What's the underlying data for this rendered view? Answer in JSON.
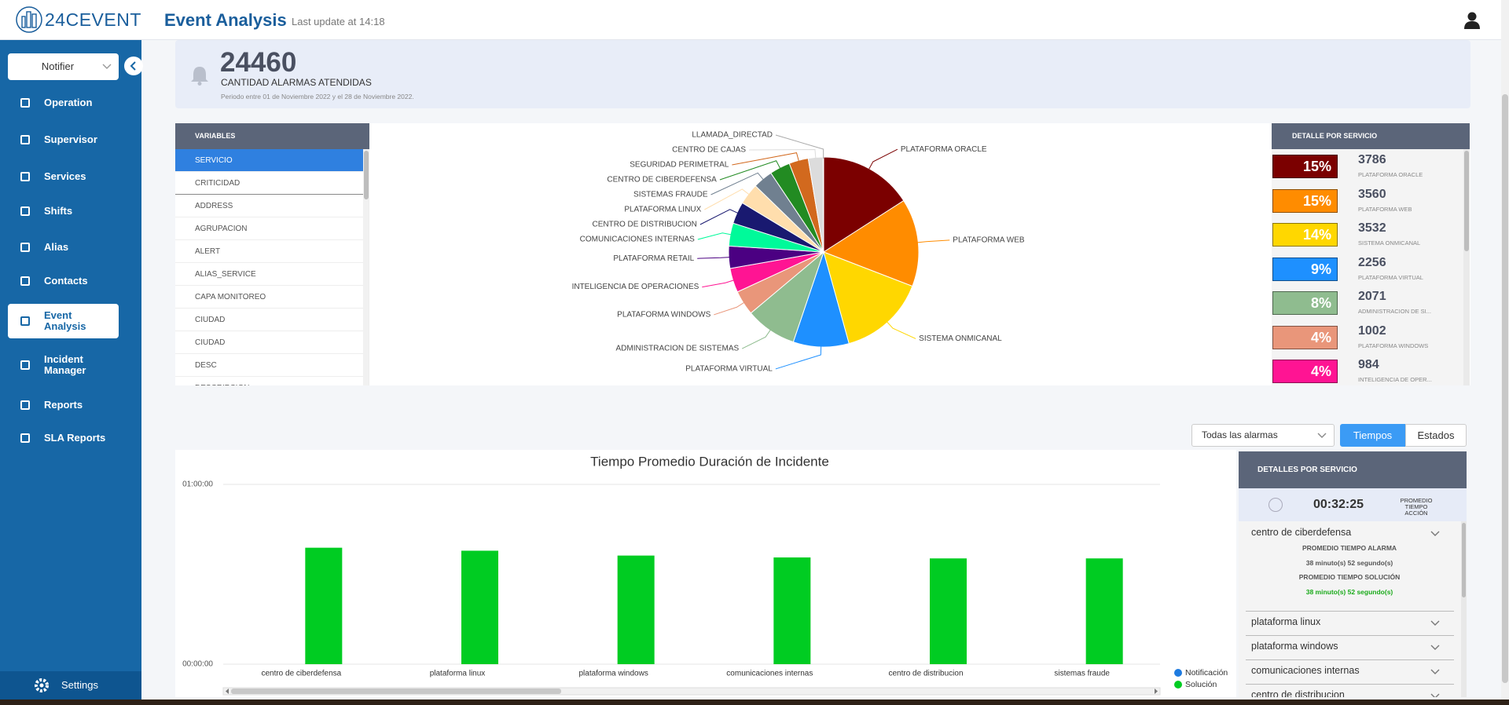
{
  "header": {
    "logo": "24CEVENT",
    "title": "Event Analysis",
    "last_update": "Last update at 14:18"
  },
  "sidebar": {
    "notifier": "Notifier",
    "items": [
      "Operation",
      "Supervisor",
      "Services",
      "Shifts",
      "Alias",
      "Contacts",
      "Event Analysis",
      "Incident Manager",
      "Reports",
      "SLA Reports"
    ],
    "active": 6,
    "settings": "Settings"
  },
  "summary": {
    "count": 24460,
    "label": "CANTIDAD ALARMAS ATENDIDAS",
    "period": "Periodo entre 01 de Noviembre 2022 y el 28 de Noviembre 2022."
  },
  "variables": {
    "title": "VARIABLES",
    "items": [
      "SERVICIO",
      "CRITICIDAD",
      "ADDRESS",
      "AGRUPACION",
      "ALERT",
      "ALIAS_SERVICE",
      "CAPA MONITOREO",
      "CIUDAD",
      "CIUDAD",
      "DESC",
      "DESCRIPCION"
    ],
    "selected": 0
  },
  "detail": {
    "title": "DETALLE POR SERVICIO",
    "items": [
      {
        "percent": "15%",
        "value": 3786,
        "name": "PLATAFORMA ORACLE",
        "color": "#7b0000"
      },
      {
        "percent": "15%",
        "value": 3560,
        "name": "PLATAFORMA WEB",
        "color": "#ff8c00"
      },
      {
        "percent": "14%",
        "value": 3532,
        "name": "SISTEMA ONMICANAL",
        "color": "#ffd700"
      },
      {
        "percent": "9%",
        "value": 2256,
        "name": "PLATAFORMA VIRTUAL",
        "color": "#1e90ff"
      },
      {
        "percent": "8%",
        "value": 2071,
        "name": "ADMINISTRACION DE SI...",
        "color": "#8fbc8f"
      },
      {
        "percent": "4%",
        "value": 1002,
        "name": "PLATAFORMA WINDOWS",
        "color": "#e9967a"
      },
      {
        "percent": "4%",
        "value": 984,
        "name": "INTELIGENCIA DE OPER...",
        "color": "#ff1493"
      }
    ]
  },
  "controls": {
    "filter": "Todas las alarmas",
    "tabs": [
      "Tiempos",
      "Estados"
    ],
    "active_tab": 0
  },
  "service_details": {
    "title": "DETALLES POR SERVICIO",
    "average": "00:32:25",
    "average_label": "PROMEDIO TIEMPO ACCIÓN",
    "items": [
      {
        "name": "centro de ciberdefensa",
        "fields": [
          "PROMEDIO TIEMPO ALARMA",
          "38 minuto(s) 52 segundo(s)",
          "PROMEDIO TIEMPO SOLUCIÓN",
          "38 minuto(s) 52 segundo(s)"
        ]
      },
      {
        "name": "plataforma linux"
      },
      {
        "name": "plataforma windows"
      },
      {
        "name": "comunicaciones internas"
      },
      {
        "name": "centro de distribucion"
      }
    ]
  },
  "chart_data": [
    {
      "type": "pie",
      "categories": [
        "PLATAFORMA ORACLE",
        "PLATAFORMA WEB",
        "SISTEMA ONMICANAL",
        "PLATAFORMA VIRTUAL",
        "ADMINISTRACION DE SISTEMAS",
        "PLATAFORMA WINDOWS",
        "INTELIGENCIA DE OPERACIONES",
        "PLATAFORMA RETAIL",
        "COMUNICACIONES INTERNAS",
        "CENTRO DE DISTRIBUCION",
        "PLATAFORMA LINUX",
        "SISTEMAS FRAUDE",
        "CENTRO DE CIBERDEFENSA",
        "SEGURIDAD PERIMETRAL",
        "CENTRO DE CAJAS",
        "LLAMADA_DIRECTAD"
      ],
      "values": [
        3786,
        3560,
        3532,
        2256,
        2071,
        1002,
        984,
        900,
        930,
        890,
        860,
        800,
        830,
        780,
        600,
        20
      ],
      "colors": [
        "#7b0000",
        "#ff8c00",
        "#ffd700",
        "#1e90ff",
        "#8fbc8f",
        "#e9967a",
        "#ff1493",
        "#4b0082",
        "#00fa9a",
        "#191970",
        "#ffdead",
        "#708090",
        "#228b22",
        "#d2691e",
        "#dcdcdc",
        "#a9a9a9"
      ]
    },
    {
      "type": "bar",
      "title": "Tiempo Promedio Duración de Incidente",
      "categories": [
        "centro de ciberdefensa",
        "plataforma linux",
        "plataforma windows",
        "comunicaciones internas",
        "centro de distribucion",
        "sistemas fraude"
      ],
      "series": [
        {
          "name": "Notificación",
          "color": "#1e7be0",
          "values": [
            0,
            0,
            0,
            0,
            0,
            0
          ]
        },
        {
          "name": "Solución",
          "color": "#00cc22",
          "values": [
            2332,
            2272,
            2175,
            2137,
            2118,
            2118
          ]
        }
      ],
      "ylim": [
        0,
        3600
      ],
      "yticks": [
        {
          "value": 0,
          "label": "00:00:00"
        },
        {
          "value": 3600,
          "label": "01:00:00"
        }
      ],
      "grid": true,
      "legend": "bottom-right"
    }
  ]
}
